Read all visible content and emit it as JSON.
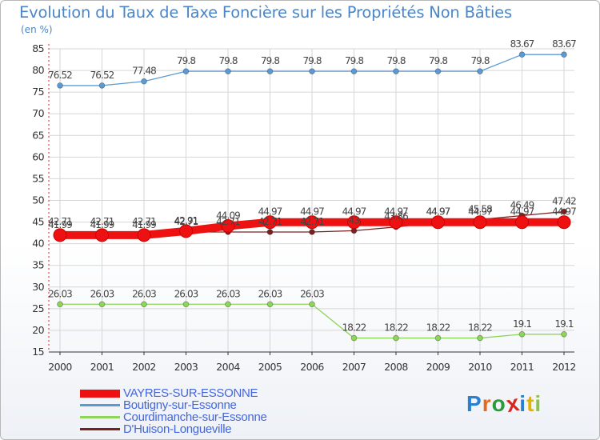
{
  "page": {
    "title": "Evolution du Taux de Taxe Foncière sur les Propriétés Non Bâties",
    "subtitle": "(en %)"
  },
  "chart_data": {
    "type": "line",
    "title": "Evolution du Taux de Taxe Foncière sur les Propriétés Non Bâties",
    "ylabel": "(en %)",
    "xlabel": "",
    "ylim": [
      15,
      85
    ],
    "yticks": [
      15,
      20,
      25,
      30,
      35,
      40,
      45,
      50,
      55,
      60,
      65,
      70,
      75,
      80,
      85
    ],
    "x": [
      2000,
      2001,
      2002,
      2003,
      2004,
      2005,
      2006,
      2007,
      2008,
      2009,
      2010,
      2011,
      2012
    ],
    "grid": true,
    "series": [
      {
        "name": "VAYRES-SUR-ESSONNE",
        "color": "#ee1111",
        "values": [
          41.99,
          41.99,
          41.99,
          42.91,
          44.09,
          44.97,
          44.97,
          44.97,
          44.97,
          44.97,
          44.97,
          44.97,
          44.97
        ],
        "labels": [
          "41.99",
          "41.99",
          "41.99",
          "42.91",
          "44.09",
          "44.97",
          "44.97",
          "44.97",
          "44.97",
          "44.97",
          "44.97",
          "44.97",
          "44.97"
        ]
      },
      {
        "name": "Boutigny-sur-Essonne",
        "color": "#5b9bd5",
        "values": [
          76.52,
          76.52,
          77.48,
          79.8,
          79.8,
          79.8,
          79.8,
          79.8,
          79.8,
          79.8,
          79.8,
          83.67,
          83.67
        ],
        "labels": [
          "76.52",
          "76.52",
          "77.48",
          "79.8",
          "79.8",
          "79.8",
          "79.8",
          "79.8",
          "79.8",
          "79.8",
          "79.8",
          "83.67",
          "83.67"
        ]
      },
      {
        "name": "Courdimanche-sur-Essonne",
        "color": "#8ed65a",
        "values": [
          26.03,
          26.03,
          26.03,
          26.03,
          26.03,
          26.03,
          26.03,
          18.22,
          18.22,
          18.22,
          18.22,
          19.1,
          19.1
        ],
        "labels": [
          "26.03",
          "26.03",
          "26.03",
          "26.03",
          "26.03",
          "26.03",
          "26.03",
          "18.22",
          "18.22",
          "18.22",
          "18.22",
          "19.1",
          "19.1"
        ]
      },
      {
        "name": "D'Huison-Longueville",
        "color": "#7a2020",
        "values": [
          42.71,
          42.71,
          42.71,
          42.71,
          42.71,
          42.71,
          42.71,
          43.0,
          43.86,
          44.97,
          45.58,
          46.49,
          47.42
        ],
        "labels": [
          "42.71",
          "42.71",
          "42.71",
          "42.71",
          "42.71",
          "42.71",
          "42.71",
          "43",
          "43.86",
          "44.97",
          "45.58",
          "46.49",
          "47.42"
        ]
      }
    ],
    "legend_position": "bottom-left"
  },
  "branding": {
    "logo_text": "Proxiti"
  }
}
